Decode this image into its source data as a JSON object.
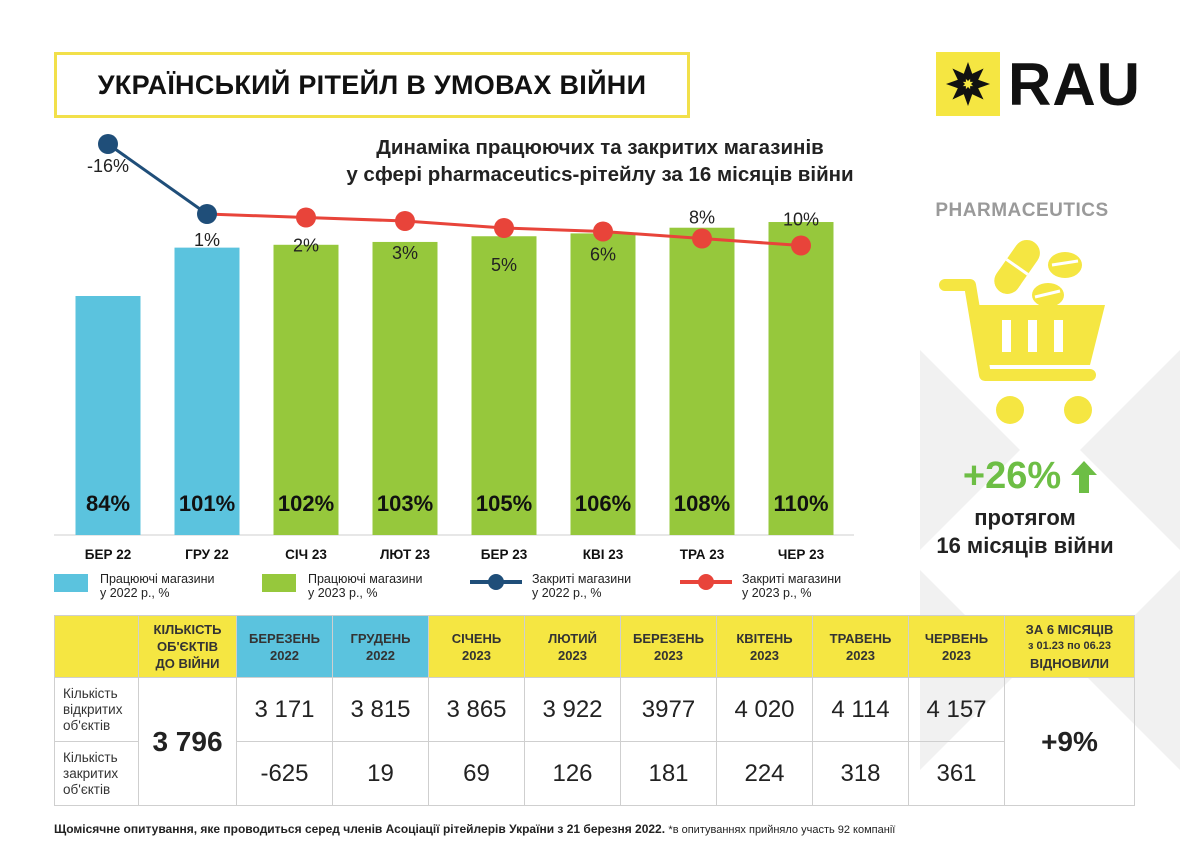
{
  "page_title": "УКРАЇНСЬКИЙ РІТЕЙЛ В УМОВАХ ВІЙНИ",
  "logo_text": "RAU",
  "chart_title_line1": "Динаміка працюючих та закритих магазинів",
  "chart_title_line2": "у сфері pharmaceutics-рітейлу за 16 місяців війни",
  "side": {
    "label": "PHARMACEUTICS",
    "growth": "+26%",
    "desc_line1": "протягом",
    "desc_line2": "16 місяців війни"
  },
  "colors": {
    "bar_2022": "#5bc3de",
    "bar_2023": "#96c83c",
    "line_2022": "#1f4e79",
    "line_2023": "#e8443a",
    "accent": "#f5e642",
    "growth": "#6dbe45"
  },
  "chart_data": {
    "type": "bar",
    "categories": [
      "БЕР 22",
      "ГРУ 22",
      "СІЧ 23",
      "ЛЮТ 23",
      "БЕР 23",
      "КВІ 23",
      "ТРА 23",
      "ЧЕР 23"
    ],
    "working_values": [
      84,
      101,
      102,
      103,
      105,
      106,
      108,
      110
    ],
    "working_labels": [
      "84%",
      "101%",
      "102%",
      "103%",
      "105%",
      "106%",
      "108%",
      "110%"
    ],
    "bar_year": [
      2022,
      2022,
      2023,
      2023,
      2023,
      2023,
      2023,
      2023
    ],
    "closed_values": [
      -16,
      1,
      2,
      3,
      5,
      6,
      8,
      10
    ],
    "closed_labels": [
      "-16%",
      "1%",
      "2%",
      "3%",
      "5%",
      "6%",
      "8%",
      "10%"
    ],
    "legend": [
      {
        "line1": "Працюючі магазини",
        "line2": "у 2022 р., %"
      },
      {
        "line1": "Працюючі магазини",
        "line2": "у 2023 р., %"
      },
      {
        "line1": "Закриті магазини",
        "line2": "у 2022 р., %"
      },
      {
        "line1": "Закриті магазини",
        "line2": "у 2023 р., %"
      }
    ]
  },
  "table": {
    "col0_head": [
      "КІЛЬКІСТЬ",
      "ОБ'ЄКТІВ",
      "ДО ВІЙНИ"
    ],
    "months": [
      {
        "name": "БЕРЕЗЕНЬ",
        "year": "2022"
      },
      {
        "name": "ГРУДЕНЬ",
        "year": "2022"
      },
      {
        "name": "СІЧЕНЬ",
        "year": "2023"
      },
      {
        "name": "ЛЮТИЙ",
        "year": "2023"
      },
      {
        "name": "БЕРЕЗЕНЬ",
        "year": "2023"
      },
      {
        "name": "КВІТЕНЬ",
        "year": "2023"
      },
      {
        "name": "ТРАВЕНЬ",
        "year": "2023"
      },
      {
        "name": "ЧЕРВЕНЬ",
        "year": "2023"
      }
    ],
    "last_head": [
      "ЗА 6 МІСЯЦІВ",
      "з 01.23 по 06.23",
      "ВІДНОВИЛИ"
    ],
    "row1_label": [
      "Кількість",
      "відкритих",
      "об'єктів"
    ],
    "row2_label": [
      "Кількість",
      "закритих",
      "об'єктів"
    ],
    "prewar_total": "3 796",
    "open_values": [
      "3 171",
      "3 815",
      "3 865",
      "3 922",
      "3977",
      "4 020",
      "4 114",
      "4 157"
    ],
    "closed_values": [
      "-625",
      "19",
      "69",
      "126",
      "181",
      "224",
      "318",
      "361"
    ],
    "recovered": "+9%"
  },
  "footnote": "Щомісячне опитування, яке проводиться серед членів Асоціації рітейлерів України з 21 березня 2022.",
  "footnote_small": "*в опитуваннях прийняло участь 92 компанії"
}
